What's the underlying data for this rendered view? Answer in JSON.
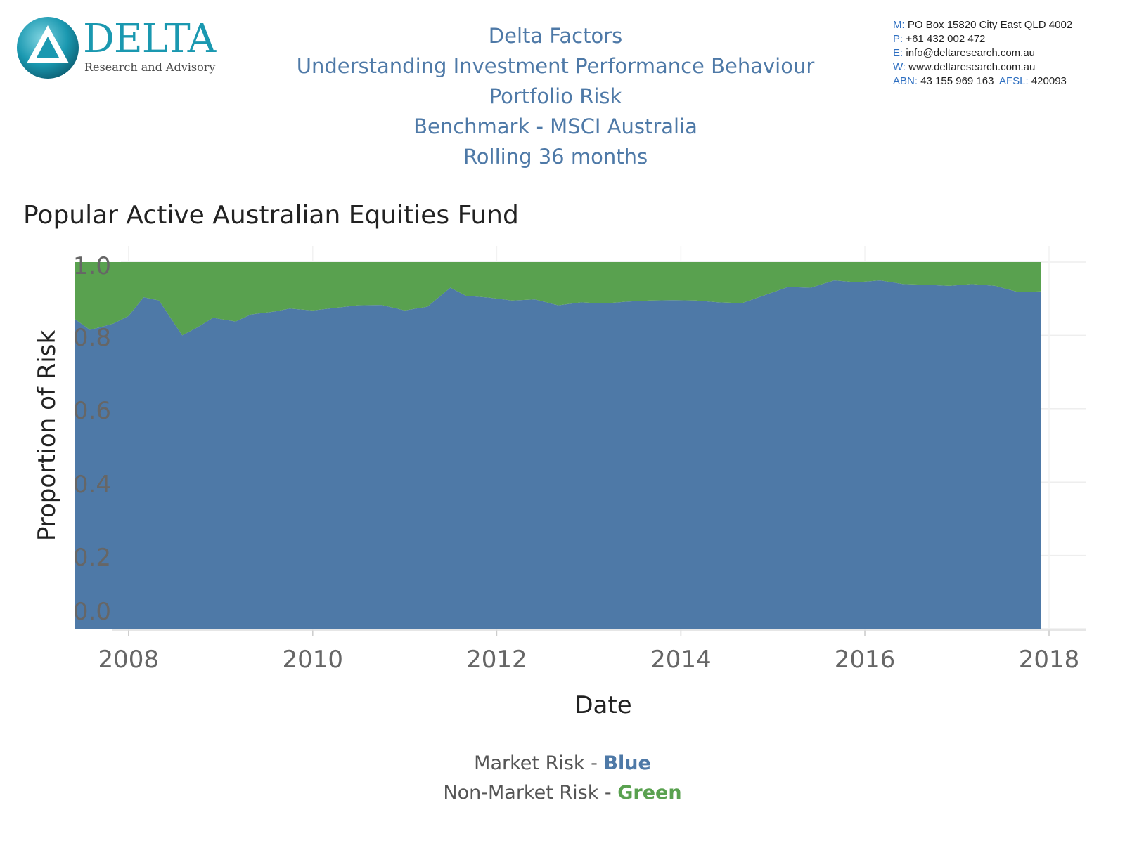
{
  "logo": {
    "wordmark": "DELTA",
    "tagline": "Research and Advisory"
  },
  "header": {
    "lines": [
      "Delta Factors",
      "Understanding Investment Performance Behaviour",
      "Portfolio Risk",
      "Benchmark - MSCI Australia",
      "Rolling 36 months"
    ]
  },
  "contact": {
    "mail_key": "M:",
    "mail": "PO Box 15820 City East QLD 4002",
    "phone_key": "P:",
    "phone": "+61 432 002 472",
    "email_key": "E:",
    "email": "info@deltaresearch.com.au",
    "web_key": "W:",
    "web": "www.deltaresearch.com.au",
    "abn_key": "ABN:",
    "abn": "43 155 969 163",
    "afsl_key": "AFSL:",
    "afsl": "420093"
  },
  "chart_data": {
    "type": "area",
    "stacked": true,
    "title": "Popular Active Australian Equities Fund",
    "xlabel": "Date",
    "ylabel": "Proportion of Risk",
    "ylim": [
      0,
      1.0
    ],
    "xlim": [
      "2007-01-01",
      "2018-01-01"
    ],
    "y_ticks": [
      "0.0",
      "0.2",
      "0.4",
      "0.6",
      "0.8",
      "1.0"
    ],
    "x_ticks": [
      "2008",
      "2010",
      "2012",
      "2014",
      "2016",
      "2018"
    ],
    "grid": true,
    "x": [
      "2007-06-01",
      "2007-08-01",
      "2007-11-01",
      "2008-01-01",
      "2008-03-01",
      "2008-05-01",
      "2008-08-01",
      "2008-10-01",
      "2008-12-01",
      "2009-03-01",
      "2009-05-01",
      "2009-08-01",
      "2009-10-01",
      "2010-01-01",
      "2010-04-01",
      "2010-07-01",
      "2010-10-01",
      "2011-01-01",
      "2011-04-01",
      "2011-07-01",
      "2011-09-01",
      "2011-12-01",
      "2012-03-01",
      "2012-06-01",
      "2012-09-01",
      "2012-12-01",
      "2013-03-01",
      "2013-06-01",
      "2013-09-01",
      "2013-12-01",
      "2014-03-01",
      "2014-06-01",
      "2014-09-01",
      "2014-12-01",
      "2015-03-01",
      "2015-06-01",
      "2015-09-01",
      "2015-12-01",
      "2016-03-01",
      "2016-06-01",
      "2016-09-01",
      "2016-12-01",
      "2017-03-01",
      "2017-06-01",
      "2017-09-01",
      "2017-12-01"
    ],
    "series": [
      {
        "name": "Market Risk",
        "color": "#4e79a7",
        "values": [
          0.845,
          0.815,
          0.832,
          0.853,
          0.904,
          0.895,
          0.8,
          0.822,
          0.848,
          0.838,
          0.857,
          0.865,
          0.873,
          0.868,
          0.875,
          0.882,
          0.883,
          0.868,
          0.878,
          0.93,
          0.908,
          0.903,
          0.895,
          0.898,
          0.882,
          0.89,
          0.887,
          0.892,
          0.895,
          0.896,
          0.895,
          0.89,
          0.888,
          0.91,
          0.932,
          0.93,
          0.95,
          0.945,
          0.95,
          0.94,
          0.938,
          0.935,
          0.94,
          0.935,
          0.918,
          0.92
        ]
      },
      {
        "name": "Non-Market Risk",
        "color": "#59a14f",
        "values": [
          0.155,
          0.185,
          0.168,
          0.147,
          0.096,
          0.105,
          0.2,
          0.178,
          0.152,
          0.162,
          0.143,
          0.135,
          0.127,
          0.132,
          0.125,
          0.118,
          0.117,
          0.132,
          0.122,
          0.07,
          0.092,
          0.097,
          0.105,
          0.102,
          0.118,
          0.11,
          0.113,
          0.108,
          0.105,
          0.104,
          0.105,
          0.11,
          0.112,
          0.09,
          0.068,
          0.07,
          0.05,
          0.055,
          0.05,
          0.06,
          0.062,
          0.065,
          0.06,
          0.065,
          0.082,
          0.08
        ]
      }
    ]
  },
  "legend": {
    "market_label": "Market Risk - ",
    "market_color_word": "Blue",
    "nonmarket_label": "Non-Market Risk - ",
    "nonmarket_color_word": "Green"
  }
}
